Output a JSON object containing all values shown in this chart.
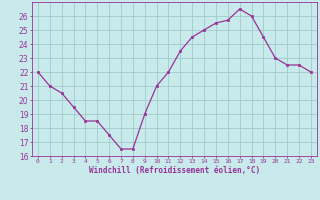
{
  "hours": [
    0,
    1,
    2,
    3,
    4,
    5,
    6,
    7,
    8,
    9,
    10,
    11,
    12,
    13,
    14,
    15,
    16,
    17,
    18,
    19,
    20,
    21,
    22,
    23
  ],
  "values": [
    22,
    21,
    20.5,
    19.5,
    18.5,
    18.5,
    17.5,
    16.5,
    16.5,
    19,
    21,
    22,
    23.5,
    24.5,
    25,
    25.5,
    25.7,
    26.5,
    26,
    24.5,
    23,
    22.5,
    22.5,
    22
  ],
  "line_color": "#993399",
  "marker_color": "#993399",
  "bg_color": "#c8eaea",
  "grid_color": "#a0cccc",
  "xlabel": "Windchill (Refroidissement éolien,°C)",
  "ylim": [
    16,
    27
  ],
  "xlim": [
    -0.5,
    23.5
  ],
  "yticks": [
    16,
    17,
    18,
    19,
    20,
    21,
    22,
    23,
    24,
    25,
    26
  ],
  "xtick_labels": [
    "0",
    "1",
    "2",
    "3",
    "4",
    "5",
    "6",
    "7",
    "8",
    "9",
    "10",
    "11",
    "12",
    "13",
    "14",
    "15",
    "16",
    "17",
    "18",
    "19",
    "20",
    "21",
    "22",
    "23"
  ],
  "tick_color": "#993399",
  "label_color": "#993399"
}
